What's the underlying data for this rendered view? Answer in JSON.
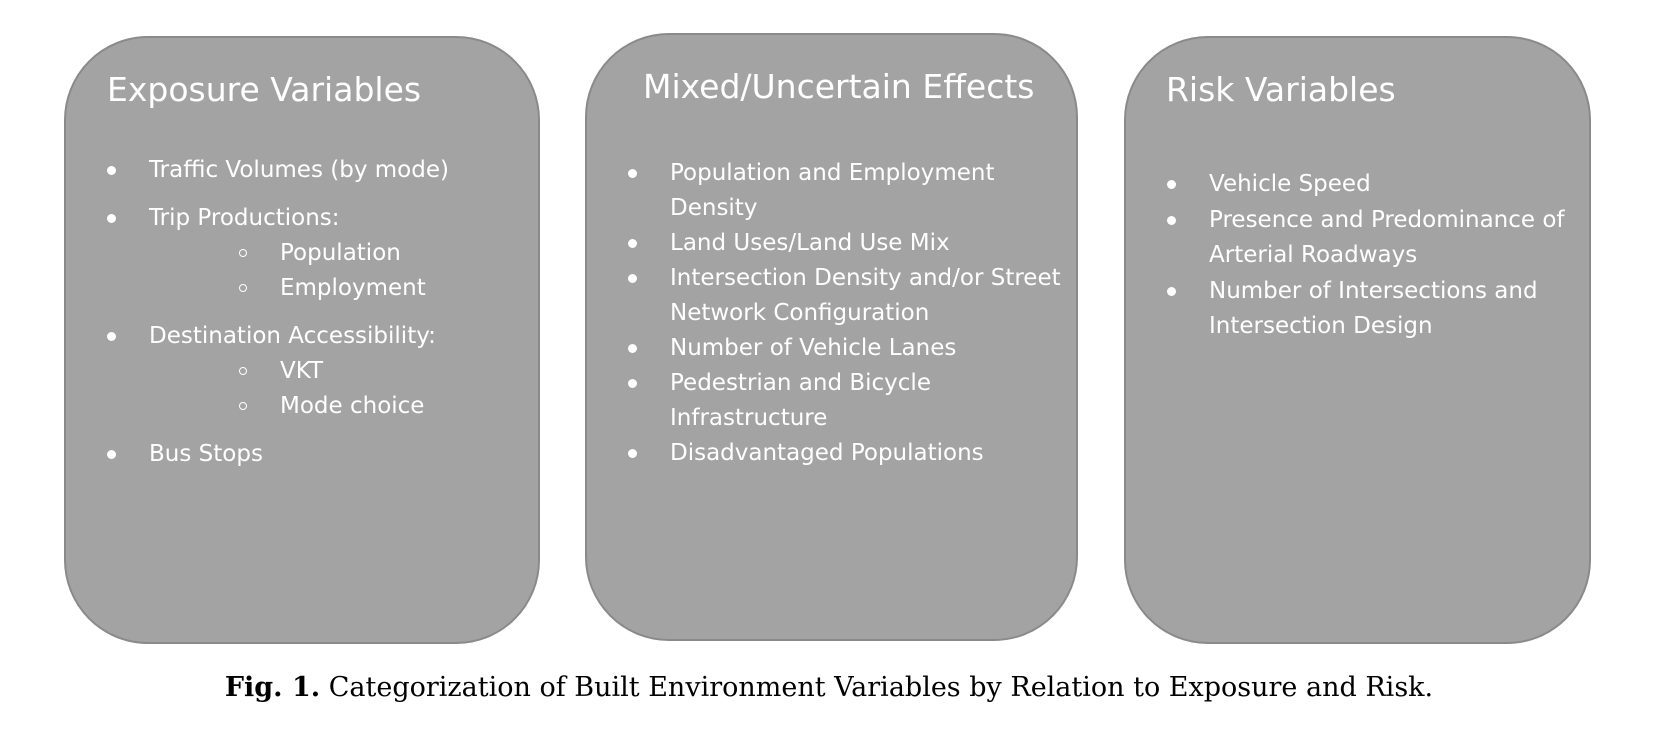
{
  "panels": [
    {
      "title": "Exposure Variables",
      "items": [
        {
          "text": "Traffic Volumes (by mode)",
          "sub": []
        },
        {
          "text": "Trip Productions:",
          "sub": [
            "Population",
            "Employment"
          ]
        },
        {
          "text": "Destination Accessibility:",
          "sub": [
            "VKT",
            "Mode choice"
          ]
        },
        {
          "text": "Bus Stops",
          "sub": []
        }
      ]
    },
    {
      "title": "Mixed/Uncertain Effects",
      "items": [
        {
          "text": "Population and Employment Density",
          "sub": []
        },
        {
          "text": "Land Uses/Land Use Mix",
          "sub": []
        },
        {
          "text": "Intersection Density and/or Street Network Configuration",
          "sub": []
        },
        {
          "text": "Number of Vehicle Lanes",
          "sub": []
        },
        {
          "text": "Pedestrian and Bicycle Infrastructure",
          "sub": []
        },
        {
          "text": "Disadvantaged Populations",
          "sub": []
        }
      ]
    },
    {
      "title": "Risk Variables",
      "items": [
        {
          "text": "Vehicle Speed",
          "sub": []
        },
        {
          "text": "Presence and Predominance of Arterial Roadways",
          "sub": []
        },
        {
          "text": "Number of Intersections and Intersection Design",
          "sub": []
        }
      ]
    }
  ],
  "caption": {
    "label": "Fig. 1.",
    "text": "Categorization of Built Environment Variables by Relation to Exposure and Risk."
  },
  "colors": {
    "panel_fill": "#a3a3a3",
    "panel_border": "#8a8a8a",
    "panel_text": "#ffffff"
  }
}
